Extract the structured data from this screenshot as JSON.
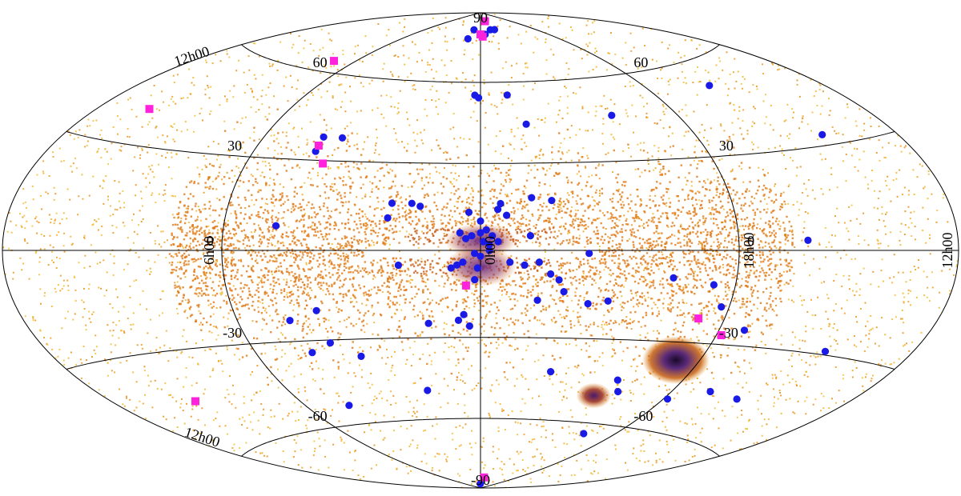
{
  "chart_data": {
    "type": "scatter",
    "projection": "aitoff-hammer (all-sky)",
    "title": "",
    "xlabel": "",
    "ylabel": "",
    "colors": {
      "density_low": "#f0b020",
      "density_mid": "#d96a10",
      "density_high": "#6a2a7a",
      "density_peak": "#1a0a2a",
      "blue_markers": "#1a1ae6",
      "magenta_markers": "#ff22dd",
      "grid": "#000000"
    },
    "latitude_labels": [
      {
        "text": "90",
        "lon": 0,
        "lat": 90
      },
      {
        "text": "60",
        "lon": -90,
        "lat": 60
      },
      {
        "text": "60",
        "lon": 90,
        "lat": 60
      },
      {
        "text": "30",
        "lon": -90,
        "lat": 30
      },
      {
        "text": "30",
        "lon": 90,
        "lat": 30
      },
      {
        "text": "0",
        "lon": -90,
        "lat": 0
      },
      {
        "text": "0",
        "lon": 90,
        "lat": 0
      },
      {
        "text": "-30",
        "lon": -90,
        "lat": -30
      },
      {
        "text": "-30",
        "lon": 90,
        "lat": -30
      },
      {
        "text": "-60",
        "lon": -90,
        "lat": -60
      },
      {
        "text": "-60",
        "lon": 90,
        "lat": -60
      },
      {
        "text": "-90",
        "lon": 0,
        "lat": -90
      }
    ],
    "longitude_labels": [
      {
        "text": "0h00",
        "lon": 0
      },
      {
        "text": "6h00",
        "lon": -90
      },
      {
        "text": "18h00",
        "lon": 90
      },
      {
        "text": "12h00",
        "lon": 180
      },
      {
        "text": "12h00",
        "lon": -180,
        "position": "upper-left"
      },
      {
        "text": "12h00",
        "lon": -180,
        "position": "lower-left"
      }
    ],
    "series": [
      {
        "marker": "circle",
        "points": [
          [
            -12,
            82
          ],
          [
            -16,
            78
          ],
          [
            7,
            80
          ],
          [
            18,
            82
          ],
          [
            26,
            82
          ],
          [
            -3,
            55
          ],
          [
            -1,
            54
          ],
          [
            14,
            55
          ],
          [
            20,
            44
          ],
          [
            60,
            46
          ],
          [
            124,
            52
          ],
          [
            -65,
            38
          ],
          [
            -57,
            38
          ],
          [
            -65,
            33
          ],
          [
            145,
            33
          ],
          [
            -31,
            16
          ],
          [
            -21,
            15
          ],
          [
            -24,
            16
          ],
          [
            -32,
            11
          ],
          [
            -71,
            8
          ],
          [
            -4,
            13
          ],
          [
            0,
            10
          ],
          [
            7,
            16
          ],
          [
            6,
            14
          ],
          [
            9,
            12
          ],
          [
            18,
            18
          ],
          [
            25,
            17
          ],
          [
            -7,
            6
          ],
          [
            -3,
            5
          ],
          [
            -5,
            4
          ],
          [
            0,
            6
          ],
          [
            2,
            7
          ],
          [
            4,
            5
          ],
          [
            17,
            5
          ],
          [
            1,
            3
          ],
          [
            3,
            2
          ],
          [
            6,
            3
          ],
          [
            3,
            0
          ],
          [
            -2,
            -1
          ],
          [
            0,
            -2
          ],
          [
            -70,
            -23
          ],
          [
            -59,
            -20
          ],
          [
            -28,
            -5
          ],
          [
            -6,
            -4
          ],
          [
            -8,
            -5
          ],
          [
            -10,
            -6
          ],
          [
            -1,
            -6
          ],
          [
            -2,
            -10
          ],
          [
            10,
            -4
          ],
          [
            15,
            -5
          ],
          [
            20,
            -4
          ],
          [
            24,
            -8
          ],
          [
            27,
            -10
          ],
          [
            20,
            -17
          ],
          [
            29,
            -14
          ],
          [
            37,
            -1
          ],
          [
            38,
            -18
          ],
          [
            45,
            -17
          ],
          [
            67,
            -9
          ],
          [
            82,
            -11
          ],
          [
            87,
            -18
          ],
          [
            -6,
            -22
          ],
          [
            -8,
            -24
          ],
          [
            -4,
            -26
          ],
          [
            -19,
            -25
          ],
          [
            -58,
            -31
          ],
          [
            -67,
            -34
          ],
          [
            -48,
            -36
          ],
          [
            -25,
            -49
          ],
          [
            -68,
            -53
          ],
          [
            30,
            -42
          ],
          [
            61,
            -44
          ],
          [
            65,
            -48
          ],
          [
            70,
            -64
          ],
          [
            92,
            -49
          ],
          [
            108,
            -45
          ],
          [
            125,
            -46
          ],
          [
            140,
            -29
          ],
          [
            100,
            -25
          ],
          [
            116,
            3
          ],
          [
            -1,
            -88
          ]
        ]
      },
      {
        "marker": "square",
        "points": [
          [
            16,
            86
          ],
          [
            0,
            80
          ],
          [
            3,
            79
          ],
          [
            -104,
            64
          ],
          [
            -155,
            40
          ],
          [
            -65,
            35
          ],
          [
            -60,
            29
          ],
          [
            -5,
            -12
          ],
          [
            80,
            -22
          ],
          [
            92,
            -27
          ],
          [
            -140,
            -45
          ],
          [
            10,
            -85
          ]
        ]
      }
    ]
  }
}
